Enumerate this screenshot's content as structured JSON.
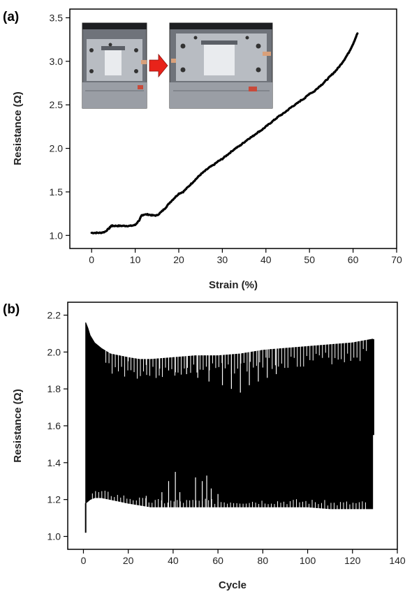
{
  "chart_data": [
    {
      "panel_label": "(a)",
      "type": "line",
      "xlabel": "Strain (%)",
      "ylabel": "Resistance (Ω)",
      "xlim": [
        -5,
        70
      ],
      "ylim": [
        0.85,
        3.6
      ],
      "xticks": [
        0,
        10,
        20,
        30,
        40,
        50,
        60,
        70
      ],
      "yticks": [
        1.0,
        1.5,
        2.0,
        2.5,
        3.0,
        3.5
      ],
      "ytick_decimals": 1,
      "series": [
        {
          "color": "#000000",
          "x": [
            0,
            1,
            2,
            3,
            4,
            4.5,
            5,
            6,
            7,
            8,
            9,
            10,
            11,
            11.5,
            12,
            13,
            14,
            15,
            16,
            17,
            18,
            19,
            20,
            21,
            22,
            23,
            24,
            25,
            26,
            27,
            28,
            29,
            30,
            31,
            32,
            33,
            34,
            35,
            36,
            37,
            38,
            39,
            40,
            41,
            42,
            43,
            44,
            45,
            46,
            47,
            48,
            49,
            50,
            51,
            52,
            53,
            54,
            55,
            56,
            57,
            58,
            59,
            60,
            61
          ],
          "y": [
            1.03,
            1.03,
            1.03,
            1.04,
            1.08,
            1.11,
            1.11,
            1.11,
            1.11,
            1.11,
            1.11,
            1.12,
            1.18,
            1.23,
            1.24,
            1.24,
            1.23,
            1.23,
            1.27,
            1.32,
            1.38,
            1.43,
            1.48,
            1.5,
            1.55,
            1.6,
            1.65,
            1.7,
            1.74,
            1.78,
            1.81,
            1.85,
            1.88,
            1.92,
            1.96,
            2.0,
            2.03,
            2.07,
            2.11,
            2.14,
            2.18,
            2.21,
            2.25,
            2.29,
            2.33,
            2.37,
            2.4,
            2.44,
            2.48,
            2.51,
            2.55,
            2.58,
            2.63,
            2.65,
            2.7,
            2.74,
            2.79,
            2.84,
            2.89,
            2.95,
            3.02,
            3.1,
            3.2,
            3.32
          ]
        }
      ],
      "inset_photos": [
        "before-stretch-photo",
        "after-stretch-photo"
      ],
      "inset_arrow_color": "#e8231a"
    },
    {
      "panel_label": "(b)",
      "type": "line",
      "xlabel": "Cycle",
      "ylabel": "Resistance (Ω)",
      "xlim": [
        -7,
        140
      ],
      "ylim": [
        0.93,
        2.27
      ],
      "xticks": [
        0,
        20,
        40,
        60,
        80,
        100,
        120,
        140
      ],
      "yticks": [
        1.0,
        1.2,
        1.4,
        1.6,
        1.8,
        2.0,
        2.2
      ],
      "ytick_decimals": 1,
      "cycles": 129,
      "initial_value": 1.02,
      "final_value": 1.55,
      "envelope_x": [
        1,
        2,
        3,
        5,
        8,
        12,
        16,
        20,
        25,
        30,
        40,
        50,
        60,
        70,
        80,
        90,
        100,
        110,
        120,
        129
      ],
      "envelope_max": [
        2.16,
        2.13,
        2.09,
        2.05,
        2.02,
        1.99,
        1.98,
        1.97,
        1.96,
        1.96,
        1.97,
        1.98,
        1.98,
        1.99,
        2.01,
        2.02,
        2.03,
        2.04,
        2.05,
        2.07
      ],
      "envelope_min": [
        1.18,
        1.19,
        1.2,
        1.21,
        1.21,
        1.2,
        1.19,
        1.18,
        1.17,
        1.16,
        1.16,
        1.16,
        1.16,
        1.16,
        1.16,
        1.16,
        1.16,
        1.15,
        1.15,
        1.15
      ],
      "top_dips": [
        [
          20,
          1.95
        ],
        [
          28,
          1.93
        ],
        [
          34,
          1.91
        ],
        [
          38,
          1.9
        ],
        [
          41,
          1.89
        ],
        [
          46,
          1.88
        ],
        [
          51,
          1.86
        ],
        [
          56,
          1.84
        ],
        [
          62,
          1.82
        ],
        [
          66,
          1.8
        ],
        [
          70,
          1.78
        ],
        [
          74,
          1.82
        ],
        [
          78,
          1.84
        ],
        [
          82,
          1.86
        ],
        [
          86,
          1.88
        ]
      ],
      "bottom_spikes": [
        [
          28,
          1.22
        ],
        [
          35,
          1.24
        ],
        [
          38,
          1.3
        ],
        [
          41,
          1.35
        ],
        [
          43,
          1.24
        ],
        [
          50,
          1.32
        ],
        [
          53,
          1.3
        ],
        [
          55,
          1.33
        ],
        [
          57,
          1.26
        ],
        [
          60,
          1.23
        ]
      ]
    }
  ]
}
